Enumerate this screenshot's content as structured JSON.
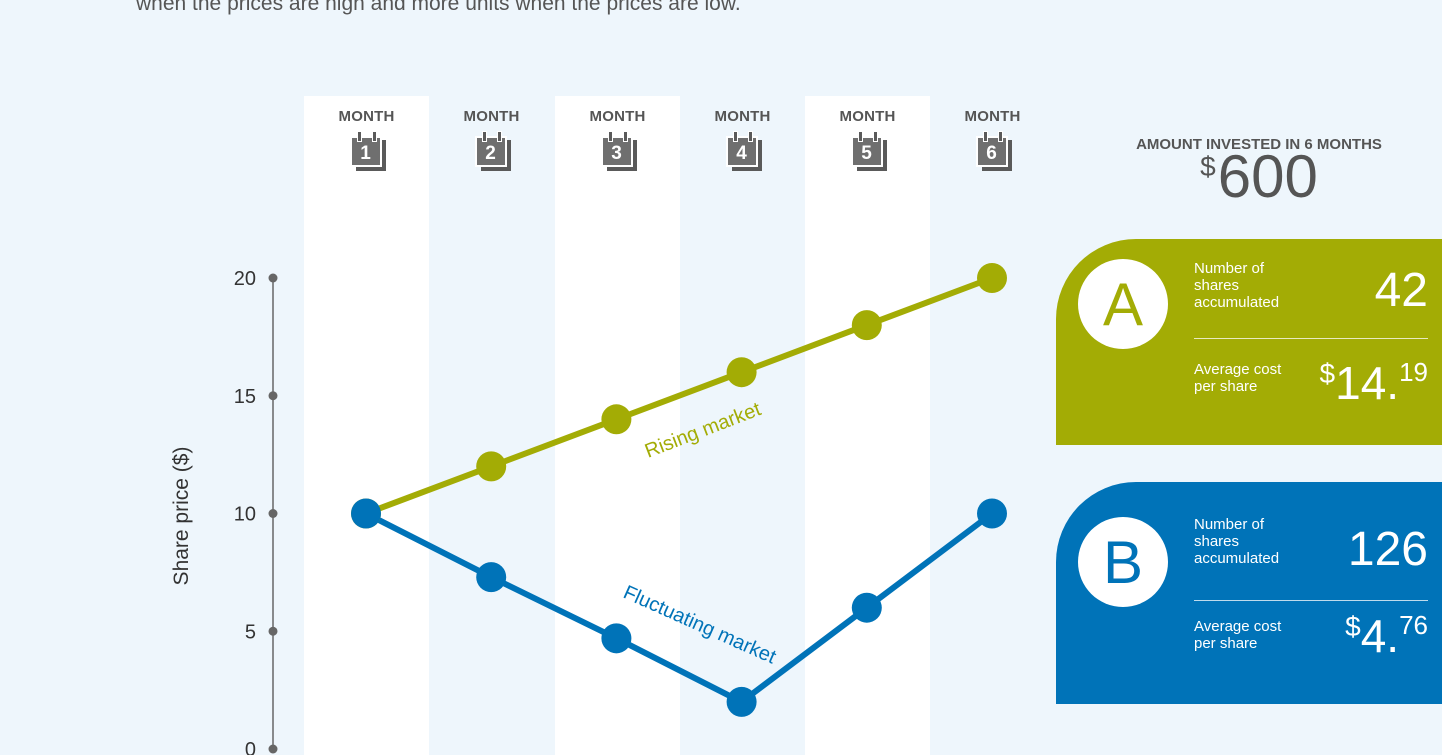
{
  "intro_text": "when the prices are high and more units when the prices are low.",
  "months": [
    {
      "label": "MONTH",
      "number": "1"
    },
    {
      "label": "MONTH",
      "number": "2"
    },
    {
      "label": "MONTH",
      "number": "3"
    },
    {
      "label": "MONTH",
      "number": "4"
    },
    {
      "label": "MONTH",
      "number": "5"
    },
    {
      "label": "MONTH",
      "number": "6"
    }
  ],
  "invested": {
    "title": "AMOUNT INVESTED IN 6 MONTHS",
    "currency": "$",
    "amount": "600"
  },
  "panel_a": {
    "badge": "A",
    "shares_label": "Number of shares accumulated",
    "shares_value": "42",
    "cost_label": "Average cost per share",
    "cost_currency": "$",
    "cost_whole": "14.",
    "cost_cents": "19"
  },
  "panel_b": {
    "badge": "B",
    "shares_label": "Number of shares accumulated",
    "shares_value": "126",
    "cost_label": "Average cost per share",
    "cost_currency": "$",
    "cost_whole": "4.",
    "cost_cents": "76"
  },
  "colors": {
    "rising": "#a3ac05",
    "fluctuating": "#0073b8",
    "axis": "#666666"
  },
  "chart_data": {
    "type": "line",
    "ylabel": "Share price ($)",
    "yticks": [
      0,
      5,
      10,
      15,
      20
    ],
    "ylim": [
      0,
      20
    ],
    "x": [
      1,
      2,
      3,
      4,
      5,
      6
    ],
    "series": [
      {
        "name": "Rising market",
        "values": [
          10,
          12,
          14,
          16,
          18,
          20
        ],
        "color": "#a3ac05"
      },
      {
        "name": "Fluctuating market",
        "values": [
          10,
          7.3,
          4.7,
          2,
          6,
          10
        ],
        "color": "#0073b8"
      }
    ]
  }
}
